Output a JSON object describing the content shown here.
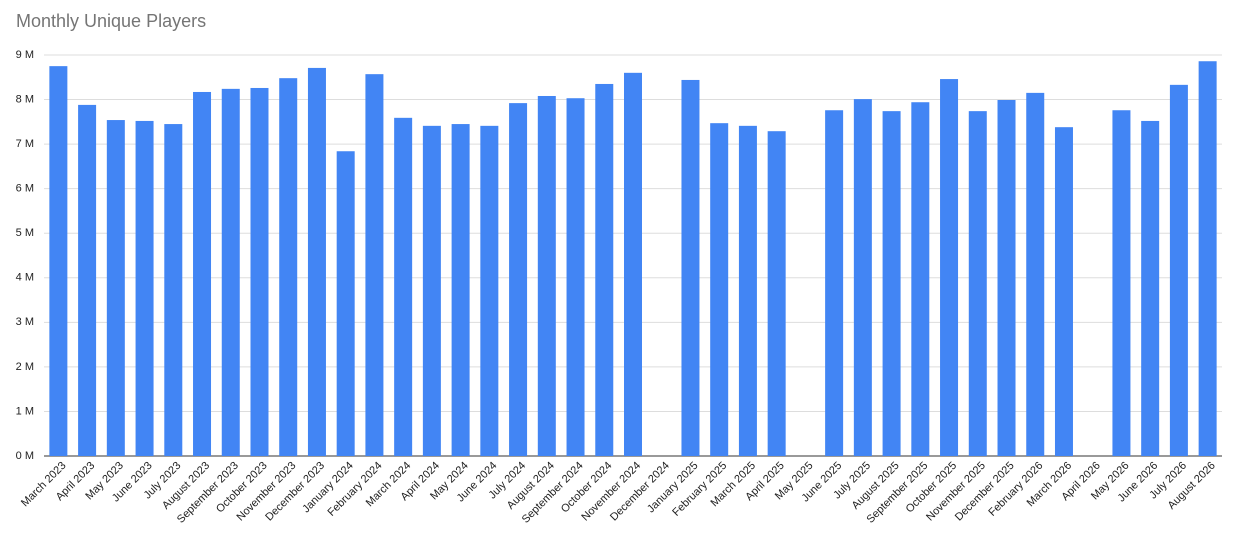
{
  "chart_data": {
    "type": "bar",
    "title": "Monthly Unique Players",
    "categories": [
      "March 2023",
      "April 2023",
      "May 2023",
      "June 2023",
      "July 2023",
      "August 2023",
      "September 2023",
      "October 2023",
      "November 2023",
      "December 2023",
      "January 2024",
      "February 2024",
      "March 2024",
      "April 2024",
      "May 2024",
      "June 2024",
      "July 2024",
      "August 2024",
      "September 2024",
      "October 2024",
      "November 2024",
      "December 2024",
      "January 2025",
      "February 2025",
      "March 2025",
      "April 2025",
      "May 2025",
      "June 2025",
      "July 2025",
      "August 2025",
      "September 2025",
      "October 2025",
      "November 2025",
      "December 2025",
      "February 2026",
      "March 2026",
      "April 2026",
      "May 2026",
      "June 2026",
      "July 2026",
      "August 2026"
    ],
    "values": [
      8.75,
      7.88,
      7.54,
      7.52,
      7.45,
      8.17,
      8.24,
      8.26,
      8.48,
      8.71,
      6.84,
      8.57,
      7.59,
      7.41,
      7.45,
      7.41,
      7.92,
      8.08,
      8.03,
      8.35,
      8.6,
      null,
      8.44,
      7.47,
      7.41,
      7.29,
      null,
      7.76,
      8.01,
      7.74,
      7.94,
      8.46,
      7.74,
      7.99,
      8.15,
      7.38,
      null,
      7.76,
      7.52,
      8.33,
      8.86
    ],
    "color": "#4285f4",
    "ylim": [
      0,
      9
    ],
    "yticks": [
      {
        "value": 0,
        "label": "0 M"
      },
      {
        "value": 1,
        "label": "1 M"
      },
      {
        "value": 2,
        "label": "2 M"
      },
      {
        "value": 3,
        "label": "3 M"
      },
      {
        "value": 4,
        "label": "4 M"
      },
      {
        "value": 5,
        "label": "5 M"
      },
      {
        "value": 6,
        "label": "6 M"
      },
      {
        "value": 7,
        "label": "7 M"
      },
      {
        "value": 8,
        "label": "8 M"
      },
      {
        "value": 9,
        "label": "9 M"
      }
    ],
    "grid": true
  }
}
